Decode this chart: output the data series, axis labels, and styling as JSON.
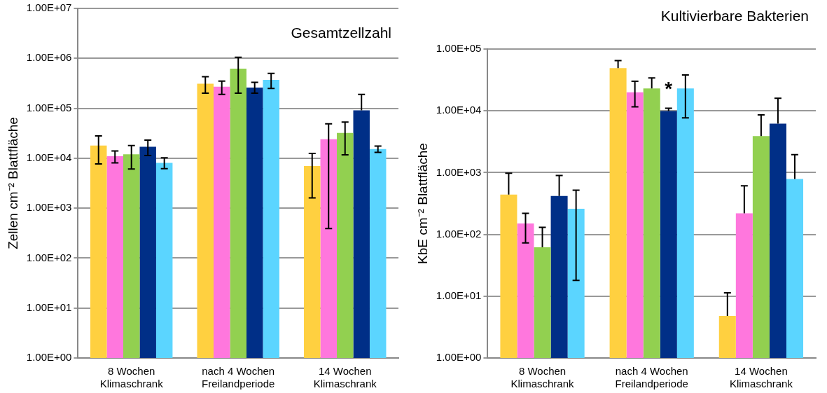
{
  "chart_data": [
    {
      "type": "bar",
      "title": "Gesamtzellzahl",
      "ylabel": "Zellen cm⁻² Blattfläche",
      "log": true,
      "grid": "y",
      "legend": false,
      "categories": [
        "8 Wochen Klimaschrank",
        "nach 4 Wochen Freilandperiode",
        "14 Wochen Klimaschrank"
      ],
      "ylim": [
        1,
        10000000
      ],
      "yticks": [
        {
          "value": 1,
          "label": "1.00E+00"
        },
        {
          "value": 10,
          "label": "1.00E+01"
        },
        {
          "value": 100,
          "label": "1.00E+02"
        },
        {
          "value": 1000,
          "label": "1.00E+03"
        },
        {
          "value": 10000,
          "label": "1.00E+04"
        },
        {
          "value": 100000,
          "label": "1.00E+05"
        },
        {
          "value": 1000000,
          "label": "1.00E+06"
        },
        {
          "value": 10000000,
          "label": "1.00E+07"
        }
      ],
      "series": [
        {
          "color": "#ffd040",
          "values": [
            18000,
            310000,
            7000
          ],
          "errors": [
            [
              7700,
              28000
            ],
            [
              200000,
              430000
            ],
            [
              1600,
              12500
            ]
          ]
        },
        {
          "color": "#ff77dd",
          "values": [
            11000,
            270000,
            24000
          ],
          "errors": [
            [
              8100,
              14000
            ],
            [
              190000,
              350000
            ],
            [
              390,
              49000
            ]
          ]
        },
        {
          "color": "#92d050",
          "values": [
            12000,
            620000,
            32000
          ],
          "errors": [
            [
              6100,
              18000
            ],
            [
              200000,
              1050000
            ],
            [
              11700,
              53000
            ]
          ]
        },
        {
          "color": "#002f87",
          "values": [
            17000,
            260000,
            91000
          ],
          "errors": [
            [
              11300,
              23000
            ],
            [
              200000,
              330000
            ],
            [
              91000,
              190000
            ]
          ]
        },
        {
          "color": "#5bd5ff",
          "values": [
            8100,
            370000,
            15300
          ],
          "errors": [
            [
              6200,
              10200
            ],
            [
              250000,
              500000
            ],
            [
              13100,
              17500
            ]
          ]
        }
      ]
    },
    {
      "type": "bar",
      "title": "Kultivierbare Bakterien",
      "ylabel": "KbE cm⁻² Blattfläche",
      "log": true,
      "grid": "y",
      "legend": false,
      "categories": [
        "8 Wochen Klimaschrank",
        "nach 4 Wochen Freilandperiode",
        "14 Wochen Klimaschrank"
      ],
      "ylim": [
        1,
        100000
      ],
      "yticks": [
        {
          "value": 1,
          "label": "1.00E+00"
        },
        {
          "value": 10,
          "label": "1.00E+01"
        },
        {
          "value": 100,
          "label": "1.00E+02"
        },
        {
          "value": 1000,
          "label": "1.00E+03"
        },
        {
          "value": 10000,
          "label": "1.00E+04"
        },
        {
          "value": 100000,
          "label": "1.00E+05"
        }
      ],
      "annotations": [
        "*"
      ],
      "series": [
        {
          "color": "#ffd040",
          "values": [
            440,
            49000,
            4.8
          ],
          "errors": [
            [
              440,
              980
            ],
            [
              49000,
              65000
            ],
            [
              4.8,
              11.3
            ]
          ]
        },
        {
          "color": "#ff77dd",
          "values": [
            150,
            20000,
            220
          ],
          "errors": [
            [
              73,
              220
            ],
            [
              11600,
              30000
            ],
            [
              220,
              610
            ]
          ]
        },
        {
          "color": "#92d050",
          "values": [
            62,
            23000,
            3900
          ],
          "errors": [
            [
              62,
              130
            ],
            [
              23000,
              34000
            ],
            [
              3900,
              8600
            ]
          ]
        },
        {
          "color": "#002f87",
          "values": [
            420,
            9900,
            6200
          ],
          "errors": [
            [
              420,
              900
            ],
            [
              9900,
              11000
            ],
            [
              6200,
              16000
            ]
          ]
        },
        {
          "color": "#5bd5ff",
          "values": [
            260,
            23000,
            790
          ],
          "errors": [
            [
              18,
              520
            ],
            [
              7700,
              38000
            ],
            [
              790,
              1950
            ]
          ]
        }
      ]
    }
  ]
}
